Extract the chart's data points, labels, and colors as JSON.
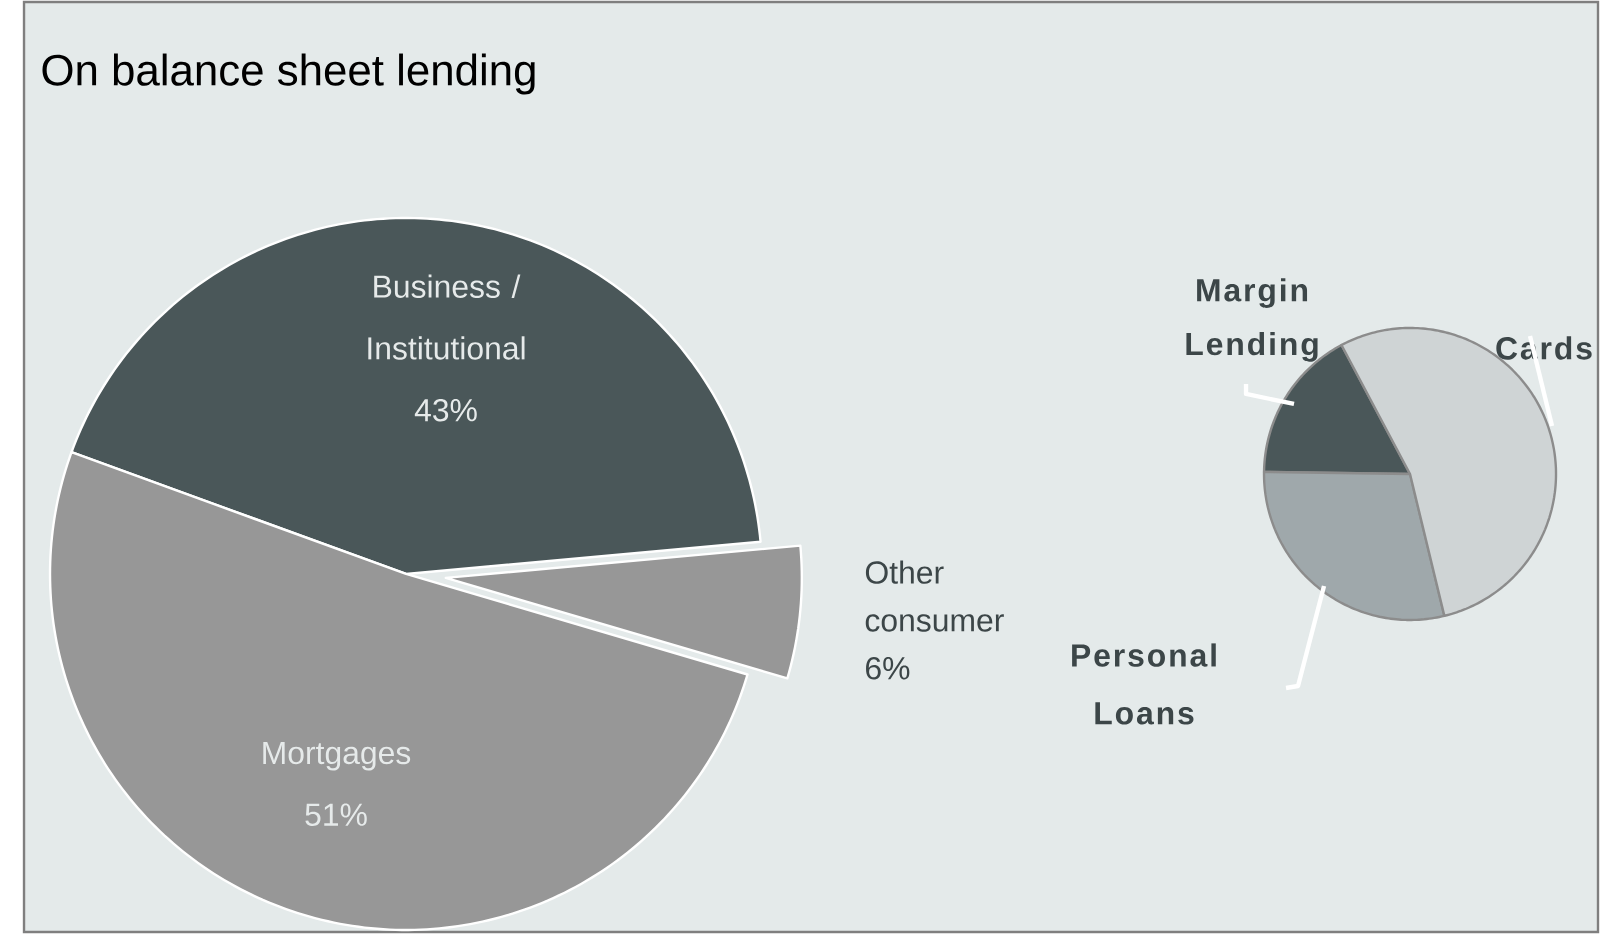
{
  "chart_data": [
    {
      "type": "pie",
      "title": "On balance sheet lending",
      "categories": [
        "Business / Institutional",
        "Mortgages",
        "Other consumer"
      ],
      "values": [
        43,
        51,
        6
      ],
      "value_labels": [
        "43%",
        "51%",
        "6%"
      ],
      "colors": [
        "#4a5759",
        "#979797",
        "#979797"
      ]
    },
    {
      "type": "pie",
      "categories": [
        "Margin Lending",
        "Personal Loans",
        "Cards"
      ],
      "values": [
        17,
        29,
        54
      ],
      "colors": [
        "#4a5759",
        "#9fa8ab",
        "#cfd4d5"
      ]
    }
  ]
}
